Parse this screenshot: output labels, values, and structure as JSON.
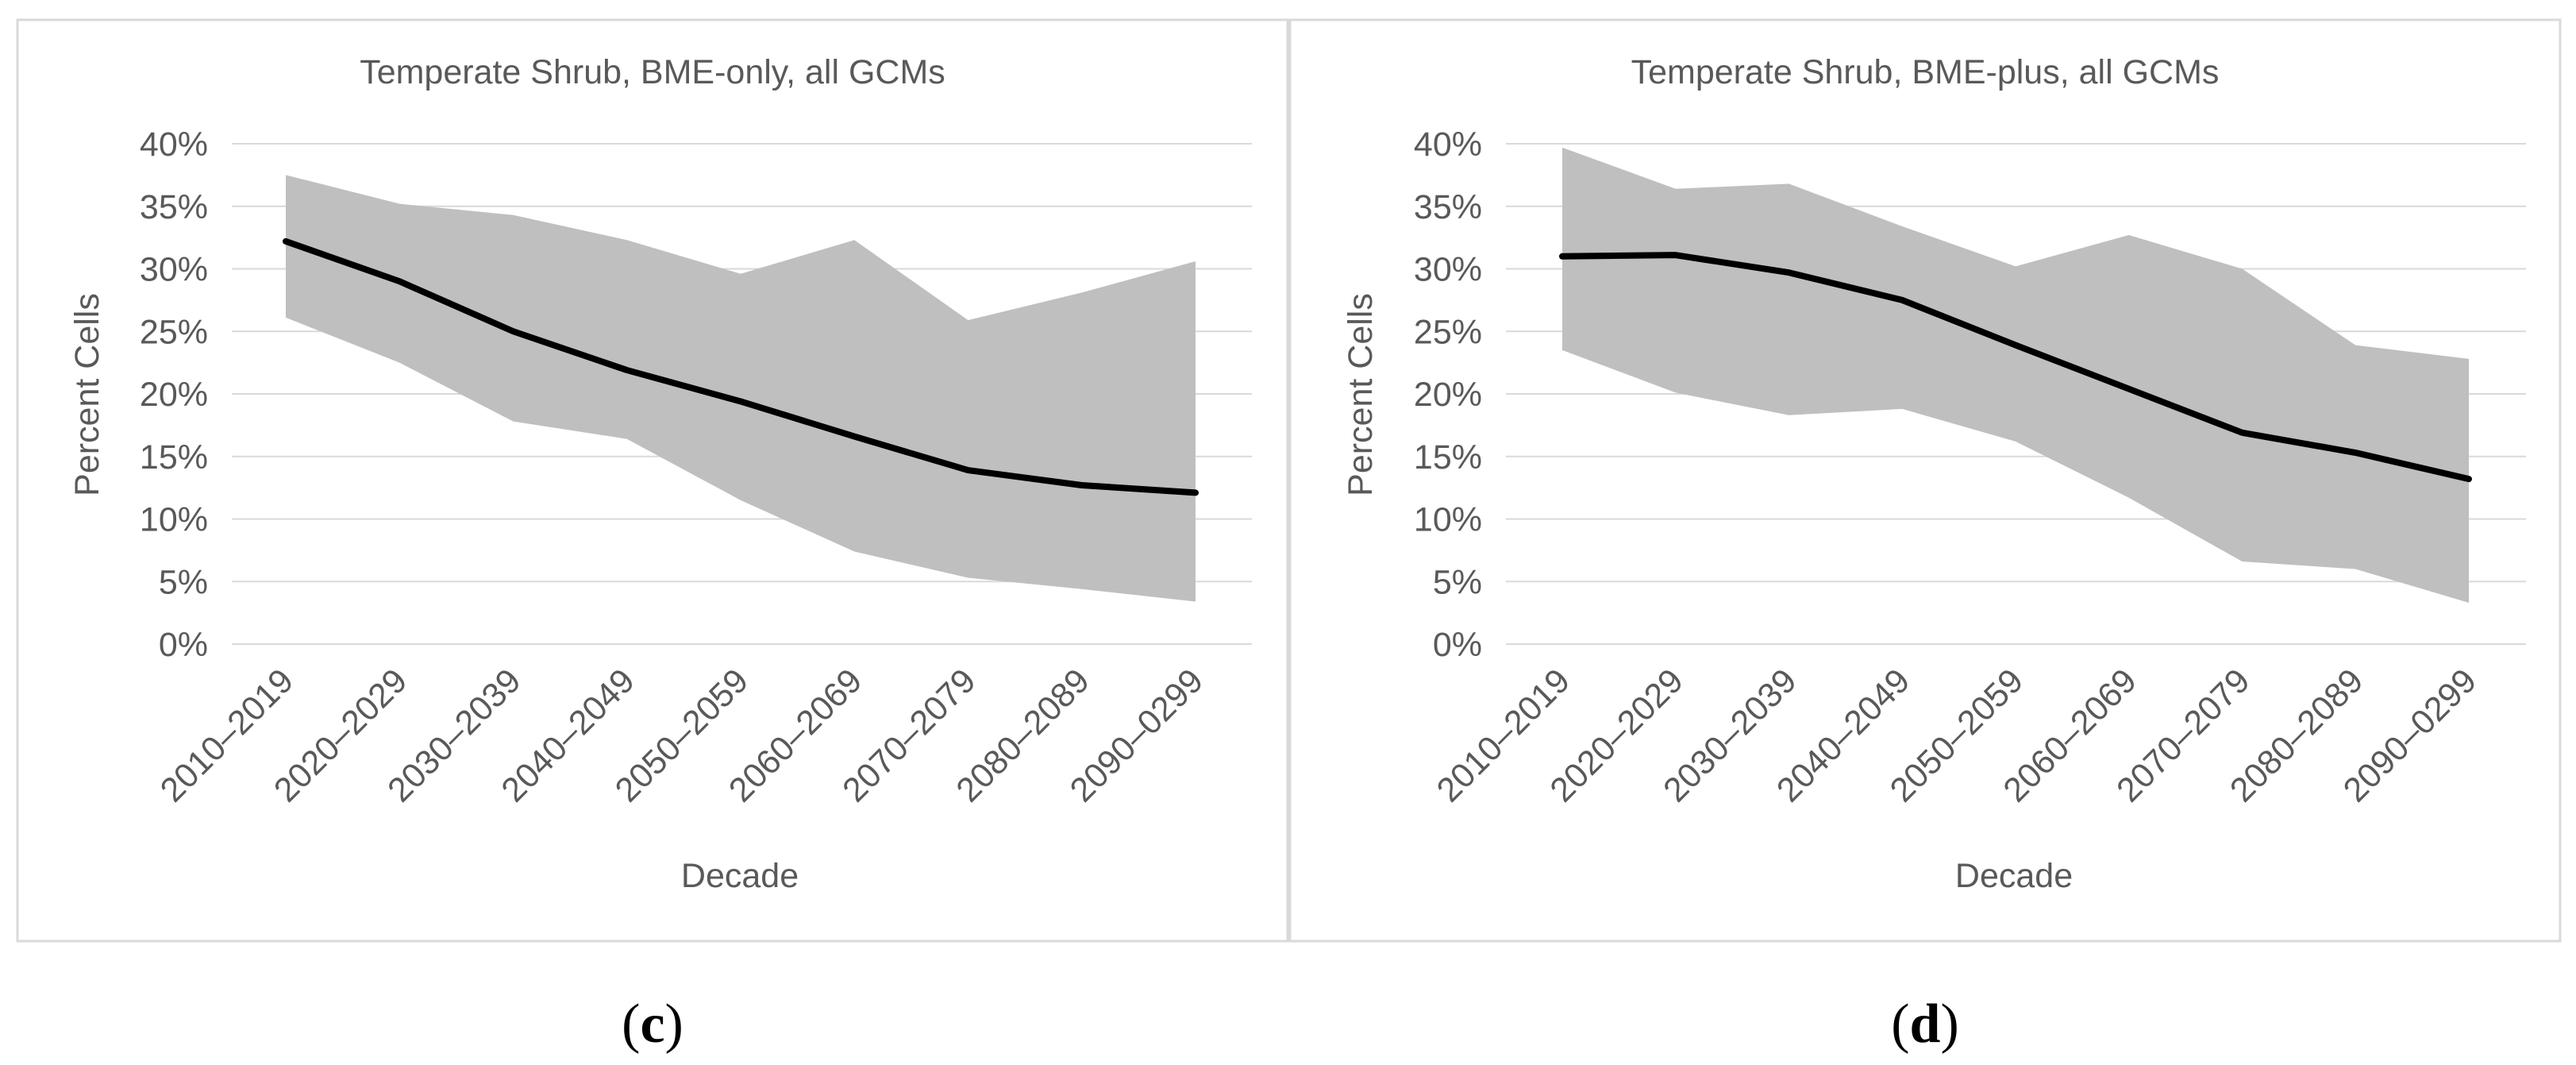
{
  "chart_data": [
    {
      "type": "area",
      "panel": "c",
      "title": "Temperate Shrub, BME-only, all GCMs",
      "xlabel": "Decade",
      "ylabel": "Percent Cells",
      "categories": [
        "2010–2019",
        "2020–2029",
        "2030–2039",
        "2040–2049",
        "2050–2059",
        "2060–2069",
        "2070–2079",
        "2080–2089",
        "2090–0299"
      ],
      "yticks": [
        "0%",
        "5%",
        "10%",
        "15%",
        "20%",
        "25%",
        "30%",
        "35%",
        "40%"
      ],
      "ylim": [
        0,
        40
      ],
      "grid": true,
      "series": [
        {
          "name": "Mean",
          "kind": "line",
          "color": "#000000",
          "values": [
            32.2,
            29.0,
            25.0,
            21.9,
            19.4,
            16.6,
            13.9,
            12.7,
            12.1
          ]
        },
        {
          "name": "Range",
          "kind": "band",
          "color": "#bfbfbf",
          "upper": [
            37.5,
            35.2,
            34.3,
            32.3,
            29.6,
            32.3,
            25.9,
            28.1,
            30.6
          ],
          "lower": [
            26.1,
            22.5,
            17.8,
            16.4,
            11.5,
            7.4,
            5.3,
            4.4,
            3.4
          ]
        }
      ]
    },
    {
      "type": "area",
      "panel": "d",
      "title": "Temperate Shrub, BME-plus, all GCMs",
      "xlabel": "Decade",
      "ylabel": "Percent Cells",
      "categories": [
        "2010–2019",
        "2020–2029",
        "2030–2039",
        "2040–2049",
        "2050–2059",
        "2060–2069",
        "2070–2079",
        "2080–2089",
        "2090–0299"
      ],
      "yticks": [
        "0%",
        "5%",
        "10%",
        "15%",
        "20%",
        "25%",
        "30%",
        "35%",
        "40%"
      ],
      "ylim": [
        0,
        40
      ],
      "grid": true,
      "series": [
        {
          "name": "Mean",
          "kind": "line",
          "color": "#000000",
          "values": [
            31.0,
            31.1,
            29.7,
            27.5,
            23.9,
            20.4,
            16.9,
            15.3,
            13.2
          ]
        },
        {
          "name": "Range",
          "kind": "band",
          "color": "#bfbfbf",
          "upper": [
            39.7,
            36.4,
            36.8,
            33.4,
            30.2,
            32.7,
            30.0,
            23.9,
            22.8
          ],
          "lower": [
            23.5,
            20.1,
            18.3,
            18.8,
            16.2,
            11.7,
            6.6,
            6.0,
            3.3
          ]
        }
      ]
    }
  ],
  "panels": {
    "c": {
      "label_open": "(",
      "label_letter": "c",
      "label_close": ")"
    },
    "d": {
      "label_open": "(",
      "label_letter": "d",
      "label_close": ")"
    }
  }
}
